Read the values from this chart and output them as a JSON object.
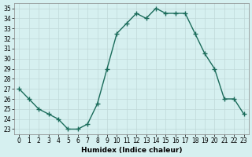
{
  "x": [
    0,
    1,
    2,
    3,
    4,
    5,
    6,
    7,
    8,
    9,
    10,
    11,
    12,
    13,
    14,
    15,
    16,
    17,
    18,
    19,
    20,
    21,
    22,
    23
  ],
  "y": [
    27,
    26,
    25,
    24.5,
    24,
    23,
    23,
    23.5,
    25.5,
    29,
    32.5,
    33.5,
    34.5,
    34,
    35,
    34.5,
    34.5,
    34.5,
    32.5,
    30.5,
    29,
    26,
    26,
    24.5
  ],
  "line_color": "#1a6b5a",
  "marker_color": "#1a6b5a",
  "bg_color": "#d6f0f0",
  "grid_color": "#c0d8d8",
  "xlabel": "Humidex (Indice chaleur)",
  "ylabel_ticks": [
    23,
    24,
    25,
    26,
    27,
    28,
    29,
    30,
    31,
    32,
    33,
    34,
    35
  ],
  "ylim": [
    22.5,
    35.5
  ],
  "xlim": [
    -0.5,
    23.5
  ]
}
